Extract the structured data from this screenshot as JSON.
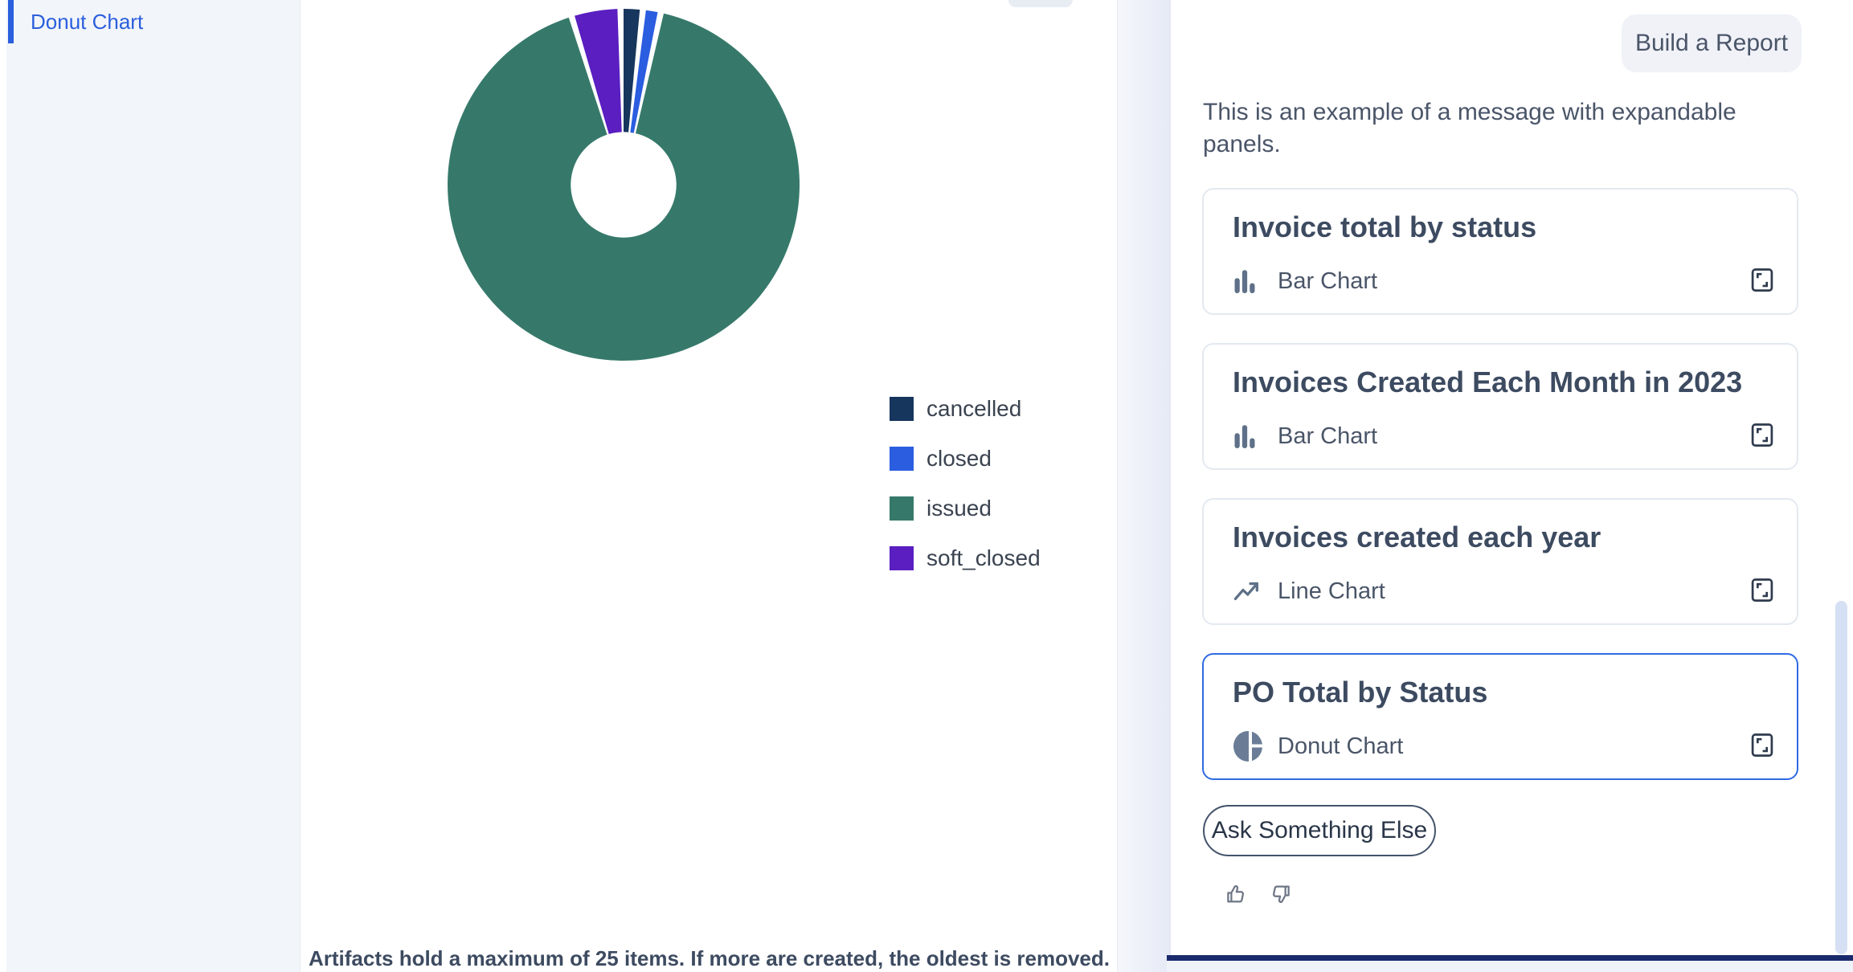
{
  "sidebar": {
    "items": [
      {
        "label": "Donut Chart",
        "active": true
      }
    ]
  },
  "artifact_panel": {
    "footer_note": "Artifacts hold a maximum of 25 items. If more are created, the oldest is removed."
  },
  "chart_data": {
    "type": "pie",
    "variant": "donut",
    "title": "PO Total by Status",
    "labels": [
      "cancelled",
      "closed",
      "issued",
      "soft_closed"
    ],
    "values": [
      1.5,
      1.1,
      92.9,
      4.0
    ],
    "unit": "percent_of_total",
    "colors": [
      "#17365d",
      "#2b5de0",
      "#36796a",
      "#5a1ec1"
    ],
    "legend_position": "right",
    "donut_hole_ratio": 0.3,
    "pad_angle_deg": 2,
    "start_angle_deg": 0
  },
  "chat": {
    "build_report_label": "Build a Report",
    "message": "This is an example of a message with expandable panels.",
    "cards": [
      {
        "title": "Invoice total by status",
        "chart_type": "Bar Chart",
        "icon": "bar-chart-icon",
        "selected": false
      },
      {
        "title": "Invoices Created Each Month in 2023",
        "chart_type": "Bar Chart",
        "icon": "bar-chart-icon",
        "selected": false
      },
      {
        "title": "Invoices created each year",
        "chart_type": "Line Chart",
        "icon": "line-chart-icon",
        "selected": false
      },
      {
        "title": "PO Total by Status",
        "chart_type": "Donut Chart",
        "icon": "donut-chart-icon",
        "selected": true
      }
    ],
    "ask_button_label": "Ask Something Else",
    "feedback_icons": [
      "thumbs-up-icon",
      "thumbs-down-icon"
    ]
  },
  "colors": {
    "accent_blue": "#2b5fdd",
    "selected_card_border": "#2f6be4",
    "navy_bar": "#1a2a6c",
    "icon_slate": "#5f7189"
  }
}
